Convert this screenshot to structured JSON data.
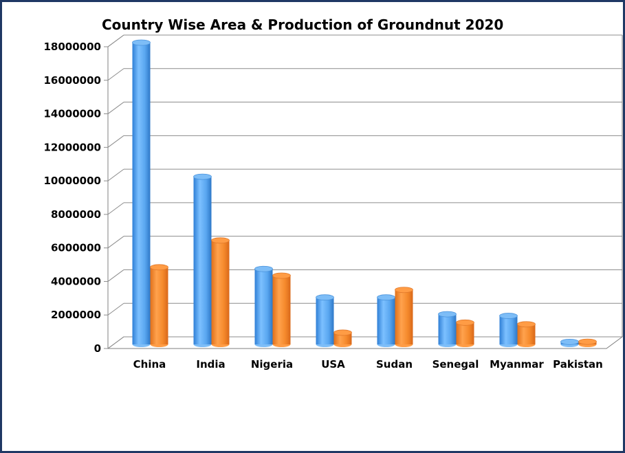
{
  "chart_data": {
    "type": "bar",
    "title": "Country Wise Area & Production of Groundnut 2020",
    "categories": [
      "China",
      "India",
      "Nigeria",
      "USA",
      "Sudan",
      "Senegal",
      "Myanmar",
      "Pakistan"
    ],
    "series": [
      {
        "values": [
          18000000,
          10000000,
          4500000,
          2800000,
          2800000,
          1800000,
          1700000,
          150000
        ]
      },
      {
        "values": [
          4600000,
          6200000,
          4100000,
          700000,
          3250000,
          1300000,
          1200000,
          160000
        ]
      }
    ],
    "y_ticks": [
      "0",
      "2000000",
      "4000000",
      "6000000",
      "8000000",
      "10000000",
      "12000000",
      "14000000",
      "16000000",
      "18000000"
    ],
    "ylim": [
      0,
      18000000
    ],
    "grid": true,
    "legend": "none",
    "colors": [
      "#5aa7f0",
      "#f58a2c"
    ]
  }
}
